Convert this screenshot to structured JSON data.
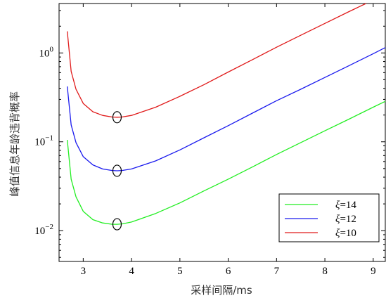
{
  "chart_data": {
    "type": "line",
    "title": "",
    "xlabel": "采样间隔/ms",
    "ylabel": "峰值信息年龄违背概率",
    "x_ticks": [
      3,
      4,
      5,
      6,
      7,
      8,
      9
    ],
    "y_ticks": [
      {
        "value": 0.01,
        "base": "10",
        "exp": "−2"
      },
      {
        "value": 0.1,
        "base": "10",
        "exp": "−1"
      },
      {
        "value": 1,
        "base": "10",
        "exp": "0"
      }
    ],
    "xlim": [
      2.5,
      9.25
    ],
    "ylim": [
      0.0045,
      3.6
    ],
    "yscale": "log",
    "grid": false,
    "legend_position": "bottom-right",
    "series": [
      {
        "name": "ξ=14",
        "legend_symbol": "ξ",
        "legend_value": "=14",
        "color": "#22ee22",
        "x": [
          2.67,
          2.75,
          2.85,
          3.0,
          3.2,
          3.4,
          3.6,
          3.7,
          3.8,
          4.0,
          4.5,
          5.0,
          5.5,
          6.0,
          6.5,
          7.0,
          7.5,
          8.0,
          8.5,
          9.0,
          9.25
        ],
        "y": [
          0.105,
          0.038,
          0.024,
          0.0165,
          0.0133,
          0.0122,
          0.0118,
          0.0118,
          0.0119,
          0.0125,
          0.0156,
          0.0205,
          0.028,
          0.038,
          0.052,
          0.072,
          0.098,
          0.133,
          0.18,
          0.245,
          0.285
        ],
        "marker_x": 3.7,
        "marker_y": 0.0118
      },
      {
        "name": "ξ=12",
        "legend_symbol": "ξ",
        "legend_value": "=12",
        "color": "#1a1aee",
        "x": [
          2.67,
          2.75,
          2.85,
          3.0,
          3.2,
          3.4,
          3.6,
          3.7,
          3.8,
          4.0,
          4.5,
          5.0,
          5.5,
          6.0,
          6.5,
          7.0,
          7.5,
          8.0,
          8.5,
          9.0,
          9.25
        ],
        "y": [
          0.42,
          0.155,
          0.098,
          0.068,
          0.055,
          0.0495,
          0.0475,
          0.0472,
          0.0475,
          0.0495,
          0.061,
          0.081,
          0.111,
          0.152,
          0.21,
          0.29,
          0.39,
          0.53,
          0.72,
          0.98,
          1.15
        ],
        "marker_x": 3.7,
        "marker_y": 0.0472
      },
      {
        "name": "ξ=10",
        "legend_symbol": "ξ",
        "legend_value": "=10",
        "color": "#e01a1a",
        "x": [
          2.67,
          2.75,
          2.85,
          3.0,
          3.2,
          3.4,
          3.6,
          3.7,
          3.8,
          4.0,
          4.5,
          5.0,
          5.5,
          6.0,
          6.5,
          7.0,
          7.5,
          8.0,
          8.5,
          8.85
        ],
        "y": [
          1.75,
          0.62,
          0.39,
          0.27,
          0.218,
          0.198,
          0.19,
          0.189,
          0.19,
          0.198,
          0.245,
          0.325,
          0.44,
          0.61,
          0.84,
          1.16,
          1.58,
          2.15,
          2.92,
          3.6
        ],
        "marker_x": 3.7,
        "marker_y": 0.189
      }
    ]
  }
}
